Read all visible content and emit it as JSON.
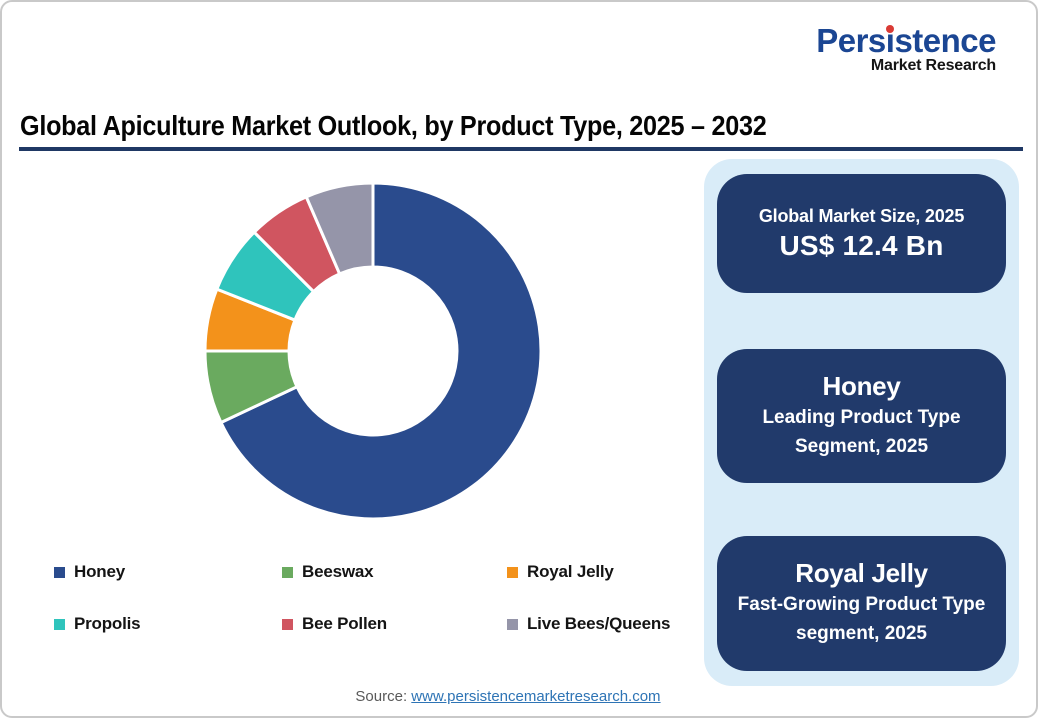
{
  "brand": {
    "prefix": "Pers",
    "dotted": "i",
    "suffix": "stence",
    "subtitle": "Market Research",
    "color": "#1b4693",
    "dot_color": "#d93a35"
  },
  "title": {
    "text": "Global Apiculture Market Outlook, by Product Type, 2025 – 2032",
    "underline_color": "#1f3864"
  },
  "chart_data": {
    "type": "pie",
    "style": "donut",
    "title": "Global Apiculture Market Outlook, by Product Type, 2025 – 2032",
    "start_angle_deg": 0,
    "direction": "clockwise",
    "inner_radius_ratio": 0.5,
    "legend_position": "bottom",
    "values_are": "percent share estimated from arc angles",
    "segments": [
      {
        "label": "Honey",
        "value": 68,
        "color": "#2a4b8d"
      },
      {
        "label": "Beeswax",
        "value": 7,
        "color": "#6aaa5f"
      },
      {
        "label": "Royal Jelly",
        "value": 6,
        "color": "#f3921b"
      },
      {
        "label": "Propolis",
        "value": 6.5,
        "color": "#2fc4bc"
      },
      {
        "label": "Bee Pollen",
        "value": 6,
        "color": "#d05560"
      },
      {
        "label": "Live Bees/Queens",
        "value": 6.5,
        "color": "#9595a9"
      }
    ]
  },
  "panel": {
    "bg": "#d9ecf8",
    "card_bg": "#213a6b",
    "cards": [
      {
        "line1": "Global Market Size, 2025",
        "line2": "US$ 12.4 Bn"
      },
      {
        "line1": "Honey",
        "line2": "Leading Product Type Segment, 2025"
      },
      {
        "line1": "Royal Jelly",
        "line2": "Fast-Growing Product Type segment, 2025"
      }
    ]
  },
  "footer": {
    "source_label": "Source: ",
    "source_link": "www.persistencemarketresearch.com"
  }
}
